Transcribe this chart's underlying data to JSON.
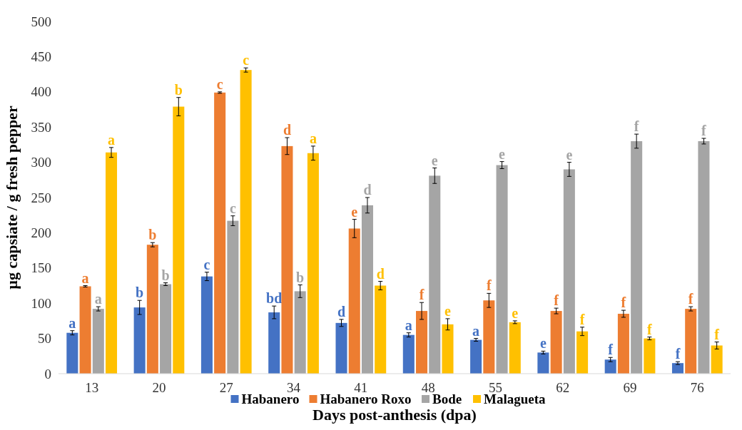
{
  "chart_data": {
    "type": "bar",
    "xlabel": "Days post-anthesis (dpa)",
    "ylabel": "µg capsiate / g fresh pepper",
    "categories": [
      "13",
      "20",
      "27",
      "34",
      "41",
      "48",
      "55",
      "62",
      "69",
      "76"
    ],
    "ylim": [
      0,
      500
    ],
    "yticks": [
      0,
      50,
      100,
      150,
      200,
      250,
      300,
      350,
      400,
      450,
      500
    ],
    "grid": false,
    "legend": "bottom",
    "series": [
      {
        "name": "Habanero",
        "color": "#4472c4",
        "values": [
          58,
          94,
          138,
          87,
          72,
          55,
          48,
          30,
          20,
          15
        ],
        "errors": [
          3,
          10,
          6,
          9,
          5,
          3,
          2,
          2,
          3,
          2
        ],
        "value_labels": [
          "a",
          "b",
          "c",
          "bd",
          "d",
          "a",
          "a",
          "e",
          "f",
          "f"
        ]
      },
      {
        "name": "Habanero Roxo",
        "color": "#ed7d31",
        "values": [
          124,
          183,
          399,
          323,
          206,
          89,
          104,
          89,
          85,
          92
        ],
        "errors": [
          1,
          3,
          1,
          12,
          13,
          12,
          10,
          4,
          5,
          3
        ],
        "value_labels": [
          "a",
          "b",
          "c",
          "d",
          "e",
          "f",
          "f",
          "f",
          "f",
          "f"
        ]
      },
      {
        "name": "Bode",
        "color": "#a5a5a5",
        "values": [
          92,
          127,
          217,
          117,
          239,
          281,
          296,
          290,
          330,
          330
        ],
        "errors": [
          3,
          2,
          7,
          9,
          11,
          11,
          5,
          10,
          10,
          4
        ],
        "value_labels": [
          "a",
          "b",
          "c",
          "b",
          "d",
          "e",
          "e",
          "e",
          "f",
          "f"
        ]
      },
      {
        "name": "Malagueta",
        "color": "#ffc000",
        "values": [
          314,
          379,
          431,
          313,
          125,
          70,
          73,
          60,
          50,
          40
        ],
        "errors": [
          7,
          13,
          3,
          10,
          6,
          8,
          2,
          6,
          2,
          5
        ],
        "value_labels": [
          "a",
          "b",
          "c",
          "a",
          "d",
          "e",
          "e",
          "f",
          "f",
          "f"
        ]
      }
    ]
  }
}
